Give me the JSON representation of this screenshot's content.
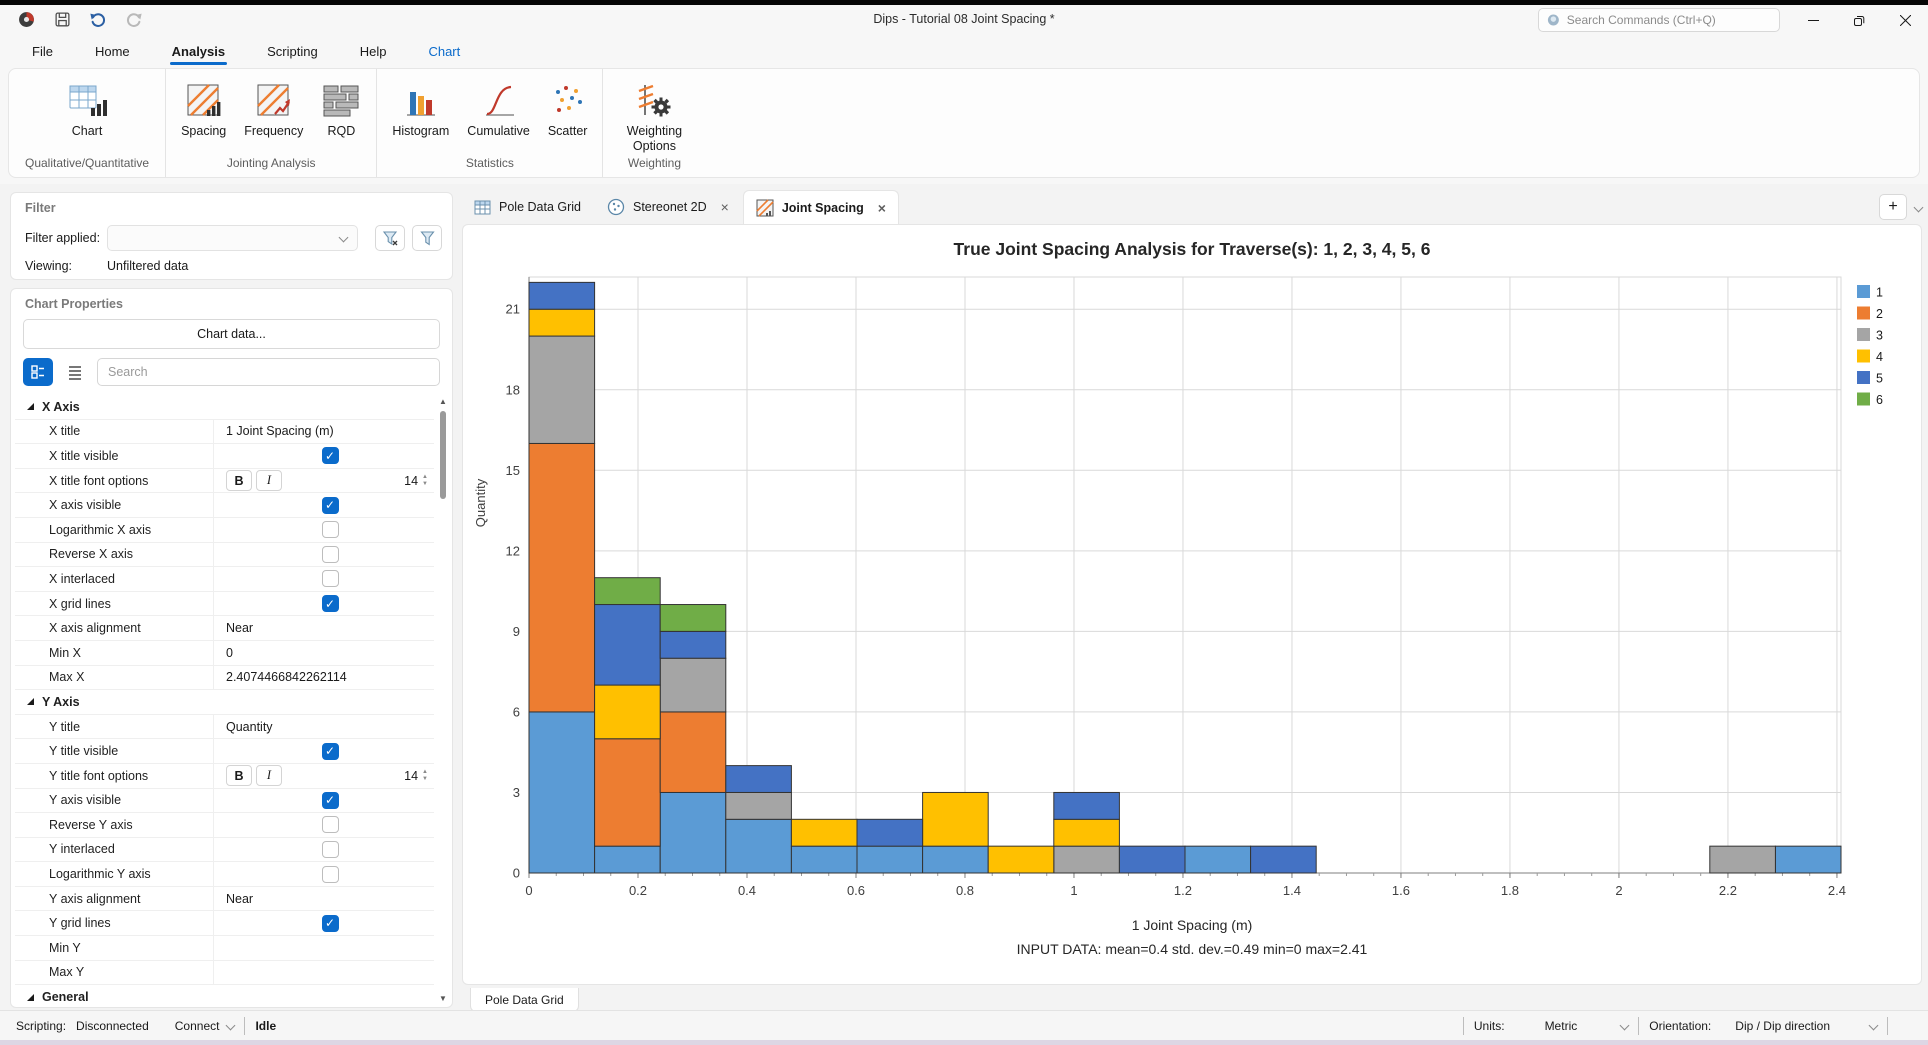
{
  "window": {
    "title": "Dips - Tutorial 08 Joint Spacing *",
    "search_placeholder": "Search Commands (Ctrl+Q)"
  },
  "menu": {
    "tabs": [
      {
        "label": "File"
      },
      {
        "label": "Home"
      },
      {
        "label": "Analysis",
        "active": true
      },
      {
        "label": "Scripting"
      },
      {
        "label": "Help"
      },
      {
        "label": "Chart",
        "contextual": true
      }
    ]
  },
  "ribbon": {
    "groups": [
      {
        "label": "Qualitative/Quantitative",
        "buttons": [
          {
            "label": "Chart",
            "icon": "chart-table-icon"
          }
        ]
      },
      {
        "label": "Jointing Analysis",
        "buttons": [
          {
            "label": "Spacing",
            "icon": "spacing-icon"
          },
          {
            "label": "Frequency",
            "icon": "frequency-icon"
          },
          {
            "label": "RQD",
            "icon": "rqd-icon"
          }
        ]
      },
      {
        "label": "Statistics",
        "buttons": [
          {
            "label": "Histogram",
            "icon": "histogram-icon"
          },
          {
            "label": "Cumulative",
            "icon": "cumulative-icon"
          },
          {
            "label": "Scatter",
            "icon": "scatter-icon"
          }
        ]
      },
      {
        "label": "Weighting",
        "buttons": [
          {
            "label": "Weighting Options",
            "icon": "weighting-options-icon"
          }
        ]
      }
    ]
  },
  "filter_panel": {
    "title": "Filter",
    "applied_label": "Filter applied:",
    "viewing_label": "Viewing:",
    "viewing_value": "Unfiltered data"
  },
  "properties_panel": {
    "title": "Chart Properties",
    "chart_data_button": "Chart data...",
    "search_placeholder": "Search",
    "rows": [
      {
        "type": "group",
        "label": "X Axis"
      },
      {
        "type": "text",
        "label": "X title",
        "value": "1 Joint Spacing (m)"
      },
      {
        "type": "check",
        "label": "X title visible",
        "checked": true
      },
      {
        "type": "font",
        "label": "X title font options",
        "bold_label": "B",
        "italic_label": "I",
        "size": "14"
      },
      {
        "type": "check",
        "label": "X axis visible",
        "checked": true
      },
      {
        "type": "check",
        "label": "Logarithmic X axis",
        "checked": false
      },
      {
        "type": "check",
        "label": "Reverse X axis",
        "checked": false
      },
      {
        "type": "check",
        "label": "X interlaced",
        "checked": false
      },
      {
        "type": "check",
        "label": "X grid lines",
        "checked": true
      },
      {
        "type": "text",
        "label": "X axis alignment",
        "value": "Near"
      },
      {
        "type": "text",
        "label": "Min X",
        "value": "0"
      },
      {
        "type": "text",
        "label": "Max X",
        "value": "2.4074466842262114"
      },
      {
        "type": "group",
        "label": "Y Axis"
      },
      {
        "type": "text",
        "label": "Y title",
        "value": "Quantity"
      },
      {
        "type": "check",
        "label": "Y title visible",
        "checked": true
      },
      {
        "type": "font",
        "label": "Y title font options",
        "bold_label": "B",
        "italic_label": "I",
        "size": "14"
      },
      {
        "type": "check",
        "label": "Y axis visible",
        "checked": true
      },
      {
        "type": "check",
        "label": "Reverse Y axis",
        "checked": false
      },
      {
        "type": "check",
        "label": "Y interlaced",
        "checked": false
      },
      {
        "type": "check",
        "label": "Logarithmic Y axis",
        "checked": false
      },
      {
        "type": "text",
        "label": "Y axis alignment",
        "value": "Near"
      },
      {
        "type": "check",
        "label": "Y grid lines",
        "checked": true
      },
      {
        "type": "text",
        "label": "Min Y",
        "value": ""
      },
      {
        "type": "text",
        "label": "Max Y",
        "value": ""
      },
      {
        "type": "group",
        "label": "General"
      }
    ]
  },
  "doc_tabs": {
    "tabs": [
      {
        "label": "Pole Data Grid",
        "icon": "grid-icon",
        "closable": false
      },
      {
        "label": "Stereonet 2D",
        "icon": "stereonet-icon",
        "closable": true
      },
      {
        "label": "Joint Spacing",
        "icon": "joint-spacing-icon",
        "closable": true,
        "active": true
      }
    ],
    "add_button": "+"
  },
  "bottom_tab": {
    "label": "Pole Data Grid"
  },
  "status_bar": {
    "scripting_label": "Scripting:",
    "scripting_value": "Disconnected",
    "connect_label": "Connect",
    "state": "Idle",
    "units_label": "Units:",
    "units_value": "Metric",
    "orientation_label": "Orientation:",
    "orientation_value": "Dip / Dip direction"
  },
  "chart_data": {
    "type": "bar",
    "stacked": true,
    "title": "True Joint Spacing Analysis for Traverse(s): 1, 2, 3, 4, 5, 6",
    "xlabel": "1 Joint Spacing (m)",
    "ylabel": "Quantity",
    "subtitle": "INPUT DATA: mean=0.4 std. dev.=0.49 min=0 max=2.41",
    "xlim": [
      0,
      2.4074466842262114
    ],
    "ylim": [
      0,
      22.2
    ],
    "bin_start": 0,
    "bin_width": 0.12037233421131056,
    "x_tick_values": [
      0,
      0.2,
      0.4,
      0.6,
      0.8,
      1,
      1.2,
      1.4,
      1.6,
      1.8,
      2,
      2.2,
      2.4
    ],
    "x_tick_labels": [
      "0",
      "0.2",
      "0.4",
      "0.6",
      "0.8",
      "1",
      "1.2",
      "1.4",
      "1.6",
      "1.8",
      "2",
      "2.2",
      "2.4"
    ],
    "y_tick_values": [
      0,
      3,
      6,
      9,
      12,
      15,
      18,
      21
    ],
    "y_tick_labels": [
      "0",
      "3",
      "6",
      "9",
      "12",
      "15",
      "18",
      "21"
    ],
    "grid": true,
    "legend_position": "top-right",
    "bar_border_color": "#333333",
    "series": [
      {
        "name": "1",
        "color": "#5B9BD5",
        "values": [
          6,
          1,
          3,
          2,
          1,
          1,
          1,
          0,
          0,
          0,
          1,
          0,
          0,
          0,
          0,
          0,
          0,
          0,
          0,
          1
        ]
      },
      {
        "name": "2",
        "color": "#ED7D31",
        "values": [
          10,
          4,
          3,
          0,
          0,
          0,
          0,
          0,
          0,
          0,
          0,
          0,
          0,
          0,
          0,
          0,
          0,
          0,
          0,
          0
        ]
      },
      {
        "name": "3",
        "color": "#A5A5A5",
        "values": [
          4,
          0,
          2,
          1,
          0,
          0,
          0,
          0,
          1,
          0,
          0,
          0,
          0,
          0,
          0,
          0,
          0,
          0,
          1,
          0
        ]
      },
      {
        "name": "4",
        "color": "#FFC000",
        "values": [
          1,
          2,
          0,
          0,
          1,
          0,
          2,
          1,
          1,
          0,
          0,
          0,
          0,
          0,
          0,
          0,
          0,
          0,
          0,
          0
        ]
      },
      {
        "name": "5",
        "color": "#4472C4",
        "values": [
          1,
          3,
          1,
          1,
          0,
          1,
          0,
          0,
          1,
          1,
          0,
          1,
          0,
          0,
          0,
          0,
          0,
          0,
          0,
          0
        ]
      },
      {
        "name": "6",
        "color": "#70AD47",
        "values": [
          0,
          1,
          1,
          0,
          0,
          0,
          0,
          0,
          0,
          0,
          0,
          0,
          0,
          0,
          0,
          0,
          0,
          0,
          0,
          0
        ]
      }
    ]
  }
}
